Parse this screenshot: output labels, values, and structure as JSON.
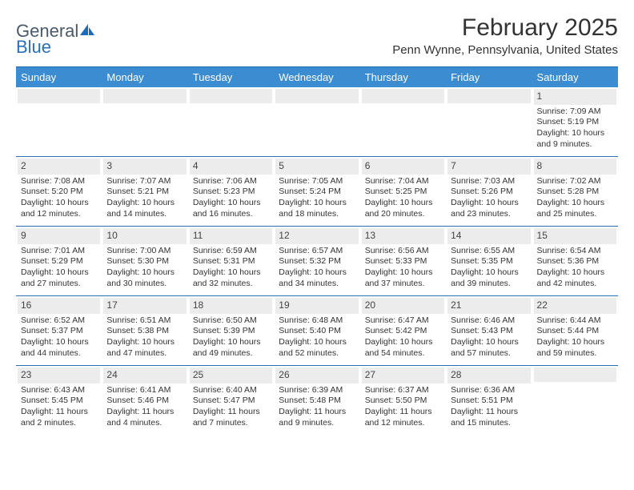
{
  "logo": {
    "word1": "General",
    "word2": "Blue"
  },
  "title": "February 2025",
  "location": "Penn Wynne, Pennsylvania, United States",
  "colors": {
    "header_bg": "#3b8cd1",
    "divider": "#1f6bb5",
    "daynum_bg": "#ececec",
    "text": "#333333",
    "logo_gray": "#4a5a6a",
    "logo_blue": "#2a6fb5"
  },
  "weekdays": [
    "Sunday",
    "Monday",
    "Tuesday",
    "Wednesday",
    "Thursday",
    "Friday",
    "Saturday"
  ],
  "weeks": [
    [
      {
        "n": "",
        "sr": "",
        "ss": "",
        "dl": ""
      },
      {
        "n": "",
        "sr": "",
        "ss": "",
        "dl": ""
      },
      {
        "n": "",
        "sr": "",
        "ss": "",
        "dl": ""
      },
      {
        "n": "",
        "sr": "",
        "ss": "",
        "dl": ""
      },
      {
        "n": "",
        "sr": "",
        "ss": "",
        "dl": ""
      },
      {
        "n": "",
        "sr": "",
        "ss": "",
        "dl": ""
      },
      {
        "n": "1",
        "sr": "Sunrise: 7:09 AM",
        "ss": "Sunset: 5:19 PM",
        "dl": "Daylight: 10 hours and 9 minutes."
      }
    ],
    [
      {
        "n": "2",
        "sr": "Sunrise: 7:08 AM",
        "ss": "Sunset: 5:20 PM",
        "dl": "Daylight: 10 hours and 12 minutes."
      },
      {
        "n": "3",
        "sr": "Sunrise: 7:07 AM",
        "ss": "Sunset: 5:21 PM",
        "dl": "Daylight: 10 hours and 14 minutes."
      },
      {
        "n": "4",
        "sr": "Sunrise: 7:06 AM",
        "ss": "Sunset: 5:23 PM",
        "dl": "Daylight: 10 hours and 16 minutes."
      },
      {
        "n": "5",
        "sr": "Sunrise: 7:05 AM",
        "ss": "Sunset: 5:24 PM",
        "dl": "Daylight: 10 hours and 18 minutes."
      },
      {
        "n": "6",
        "sr": "Sunrise: 7:04 AM",
        "ss": "Sunset: 5:25 PM",
        "dl": "Daylight: 10 hours and 20 minutes."
      },
      {
        "n": "7",
        "sr": "Sunrise: 7:03 AM",
        "ss": "Sunset: 5:26 PM",
        "dl": "Daylight: 10 hours and 23 minutes."
      },
      {
        "n": "8",
        "sr": "Sunrise: 7:02 AM",
        "ss": "Sunset: 5:28 PM",
        "dl": "Daylight: 10 hours and 25 minutes."
      }
    ],
    [
      {
        "n": "9",
        "sr": "Sunrise: 7:01 AM",
        "ss": "Sunset: 5:29 PM",
        "dl": "Daylight: 10 hours and 27 minutes."
      },
      {
        "n": "10",
        "sr": "Sunrise: 7:00 AM",
        "ss": "Sunset: 5:30 PM",
        "dl": "Daylight: 10 hours and 30 minutes."
      },
      {
        "n": "11",
        "sr": "Sunrise: 6:59 AM",
        "ss": "Sunset: 5:31 PM",
        "dl": "Daylight: 10 hours and 32 minutes."
      },
      {
        "n": "12",
        "sr": "Sunrise: 6:57 AM",
        "ss": "Sunset: 5:32 PM",
        "dl": "Daylight: 10 hours and 34 minutes."
      },
      {
        "n": "13",
        "sr": "Sunrise: 6:56 AM",
        "ss": "Sunset: 5:33 PM",
        "dl": "Daylight: 10 hours and 37 minutes."
      },
      {
        "n": "14",
        "sr": "Sunrise: 6:55 AM",
        "ss": "Sunset: 5:35 PM",
        "dl": "Daylight: 10 hours and 39 minutes."
      },
      {
        "n": "15",
        "sr": "Sunrise: 6:54 AM",
        "ss": "Sunset: 5:36 PM",
        "dl": "Daylight: 10 hours and 42 minutes."
      }
    ],
    [
      {
        "n": "16",
        "sr": "Sunrise: 6:52 AM",
        "ss": "Sunset: 5:37 PM",
        "dl": "Daylight: 10 hours and 44 minutes."
      },
      {
        "n": "17",
        "sr": "Sunrise: 6:51 AM",
        "ss": "Sunset: 5:38 PM",
        "dl": "Daylight: 10 hours and 47 minutes."
      },
      {
        "n": "18",
        "sr": "Sunrise: 6:50 AM",
        "ss": "Sunset: 5:39 PM",
        "dl": "Daylight: 10 hours and 49 minutes."
      },
      {
        "n": "19",
        "sr": "Sunrise: 6:48 AM",
        "ss": "Sunset: 5:40 PM",
        "dl": "Daylight: 10 hours and 52 minutes."
      },
      {
        "n": "20",
        "sr": "Sunrise: 6:47 AM",
        "ss": "Sunset: 5:42 PM",
        "dl": "Daylight: 10 hours and 54 minutes."
      },
      {
        "n": "21",
        "sr": "Sunrise: 6:46 AM",
        "ss": "Sunset: 5:43 PM",
        "dl": "Daylight: 10 hours and 57 minutes."
      },
      {
        "n": "22",
        "sr": "Sunrise: 6:44 AM",
        "ss": "Sunset: 5:44 PM",
        "dl": "Daylight: 10 hours and 59 minutes."
      }
    ],
    [
      {
        "n": "23",
        "sr": "Sunrise: 6:43 AM",
        "ss": "Sunset: 5:45 PM",
        "dl": "Daylight: 11 hours and 2 minutes."
      },
      {
        "n": "24",
        "sr": "Sunrise: 6:41 AM",
        "ss": "Sunset: 5:46 PM",
        "dl": "Daylight: 11 hours and 4 minutes."
      },
      {
        "n": "25",
        "sr": "Sunrise: 6:40 AM",
        "ss": "Sunset: 5:47 PM",
        "dl": "Daylight: 11 hours and 7 minutes."
      },
      {
        "n": "26",
        "sr": "Sunrise: 6:39 AM",
        "ss": "Sunset: 5:48 PM",
        "dl": "Daylight: 11 hours and 9 minutes."
      },
      {
        "n": "27",
        "sr": "Sunrise: 6:37 AM",
        "ss": "Sunset: 5:50 PM",
        "dl": "Daylight: 11 hours and 12 minutes."
      },
      {
        "n": "28",
        "sr": "Sunrise: 6:36 AM",
        "ss": "Sunset: 5:51 PM",
        "dl": "Daylight: 11 hours and 15 minutes."
      },
      {
        "n": "",
        "sr": "",
        "ss": "",
        "dl": ""
      }
    ]
  ]
}
